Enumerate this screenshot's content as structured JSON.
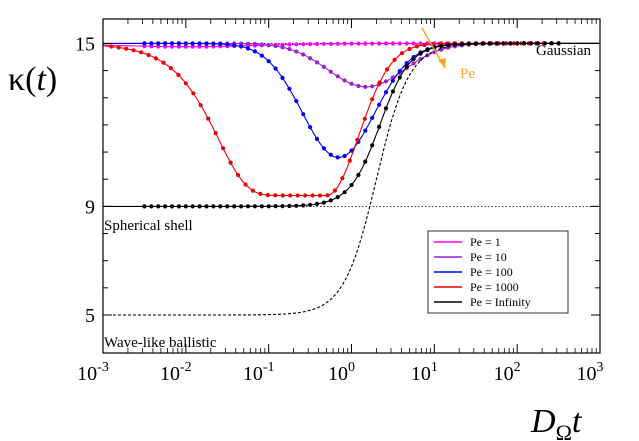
{
  "chart_data": {
    "type": "line",
    "title": "",
    "ylabel_parts": {
      "base": "κ(",
      "var": "t",
      "close": ")"
    },
    "xlabel_parts": {
      "base": "D",
      "sub": "Ω",
      "var": "t"
    },
    "x_scale": "log",
    "xlim": [
      0.001,
      1000
    ],
    "ylim": [
      3.6,
      15.9
    ],
    "x_ticks": [
      0.001,
      0.01,
      0.1,
      1,
      10,
      100,
      1000
    ],
    "x_tick_labels": [
      {
        "base": "10",
        "exp": "-3"
      },
      {
        "base": "10",
        "exp": "-2"
      },
      {
        "base": "10",
        "exp": "-1"
      },
      {
        "base": "10",
        "exp": "0"
      },
      {
        "base": "10",
        "exp": "1"
      },
      {
        "base": "10",
        "exp": "2"
      },
      {
        "base": "10",
        "exp": "3"
      }
    ],
    "y_ticks": [
      5,
      9,
      15
    ],
    "y_tick_labels": [
      "5",
      "9",
      "15"
    ],
    "reference_lines": [
      {
        "y": 15,
        "style": "dotted"
      },
      {
        "y": 9,
        "style": "dotted"
      }
    ],
    "annotations": {
      "gaussian": "Gaussian",
      "spherical_shell": "Spherical shell",
      "wave_ballistic": "Wave-like ballistic",
      "pe_arrow": "Pe"
    },
    "legend": {
      "position": "lower-right",
      "entries": [
        "Pe = 1",
        "Pe = 10",
        "Pe = 100",
        "Pe = 1000",
        "Pe = Infinity"
      ]
    },
    "series": [
      {
        "name": "Pe = 1",
        "color": "#ff00ff",
        "tmin": 0.01,
        "depth": 0.12,
        "tc": 0.4,
        "width": 1.2,
        "markers": true
      },
      {
        "name": "Pe = 10",
        "color": "#9d1fd0",
        "tmin": 1.5,
        "depth": 1.6,
        "tc": 1.5,
        "width": 0.65,
        "markers": true
      },
      {
        "name": "Pe = 100",
        "color": "#0000ee",
        "tmin": 0.7,
        "depth": 4.2,
        "tc": 0.7,
        "width": 0.62,
        "markers": true
      },
      {
        "name": "Pe = 1000",
        "color": "#ee0000",
        "tmin": 0.5,
        "depth": 5.6,
        "tc": 0.5,
        "width": 0.75,
        "markers": true
      },
      {
        "name": "Pe = Infinity",
        "color": "#000000",
        "tmin": 2.0,
        "depth": 6.0,
        "tc": 2.0,
        "width": 0.5,
        "markers": true
      },
      {
        "name": "",
        "color": "#000000",
        "kind": "ballistic",
        "dashed": true
      }
    ],
    "arrow_color": "#f5a623",
    "grid": false
  }
}
